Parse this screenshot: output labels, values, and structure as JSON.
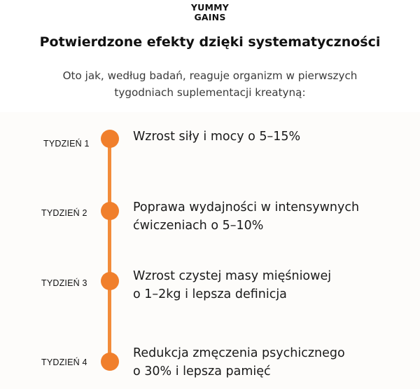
{
  "brand": {
    "line1": "YUMMY",
    "line2": "GAINS"
  },
  "header": {
    "title": "Potwierdzone efekty dzięki systematyczności",
    "subtitle": "Oto jak, według badań, reaguje organizm w pierwszych tygodniach suplementacji kreatyną:"
  },
  "timeline": {
    "accent_color": "#f07f2c",
    "items": [
      {
        "week": "TYDZIEŃ 1",
        "effect_line1": "Wzrost siły i mocy o 5–15%",
        "effect_line2": ""
      },
      {
        "week": "TYDZIEŃ 2",
        "effect_line1": "Poprawa wydajności w intensywnych",
        "effect_line2": "ćwiczeniach o 5–10%"
      },
      {
        "week": "TYDZIEŃ 3",
        "effect_line1": "Wzrost czystej masy mięśniowej",
        "effect_line2": "o 1–2kg i lepsza definicja"
      },
      {
        "week": "TYDZIEŃ 4",
        "effect_line1": "Redukcja zmęczenia psychicznego",
        "effect_line2": "o 30% i lepsza pamięć"
      }
    ]
  }
}
